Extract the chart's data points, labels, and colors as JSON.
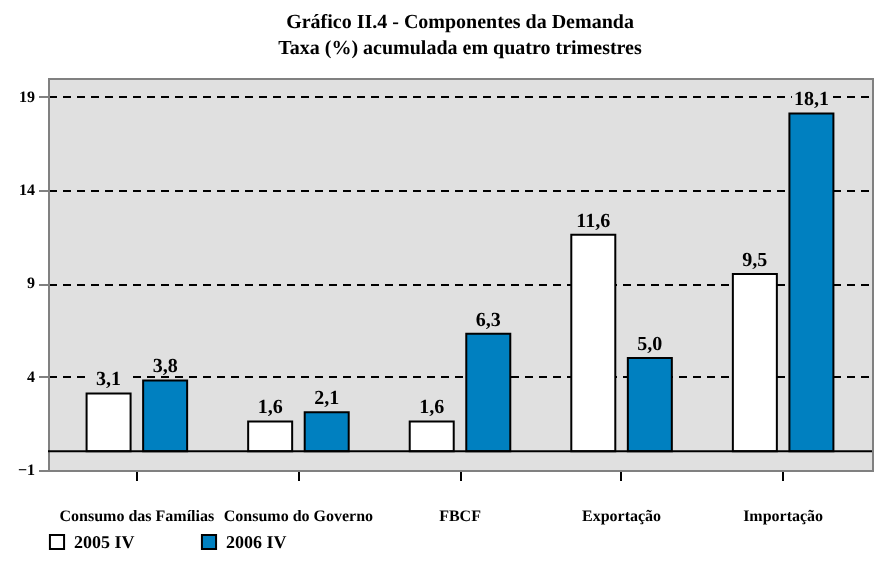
{
  "chart_data": {
    "type": "bar",
    "title": "Gráfico II.4 - Componentes da Demanda",
    "subtitle": "Taxa (%) acumulada em quatro trimestres",
    "categories": [
      "Consumo das Famílias",
      "Consumo do Governo",
      "FBCF",
      "Exportação",
      "Importação"
    ],
    "series": [
      {
        "name": "2005 IV",
        "color": "#ffffff",
        "values": [
          3.1,
          1.6,
          1.6,
          11.6,
          9.5
        ],
        "value_labels": [
          "3,1",
          "1,6",
          "1,6",
          "11,6",
          "9,5"
        ]
      },
      {
        "name": "2006 IV",
        "color": "#0080c0",
        "values": [
          3.8,
          2.1,
          6.3,
          5.0,
          18.1
        ],
        "value_labels": [
          "3,8",
          "2,1",
          "6,3",
          "5,0",
          "18,1"
        ]
      }
    ],
    "ylim": [
      -1,
      20
    ],
    "yticks": [
      -1,
      4,
      9,
      14,
      19
    ],
    "grid": "y",
    "legend": "bottom",
    "ref_lines": [
      {
        "axis": "y",
        "value": 0,
        "label": null,
        "color": "#000000"
      }
    ]
  }
}
